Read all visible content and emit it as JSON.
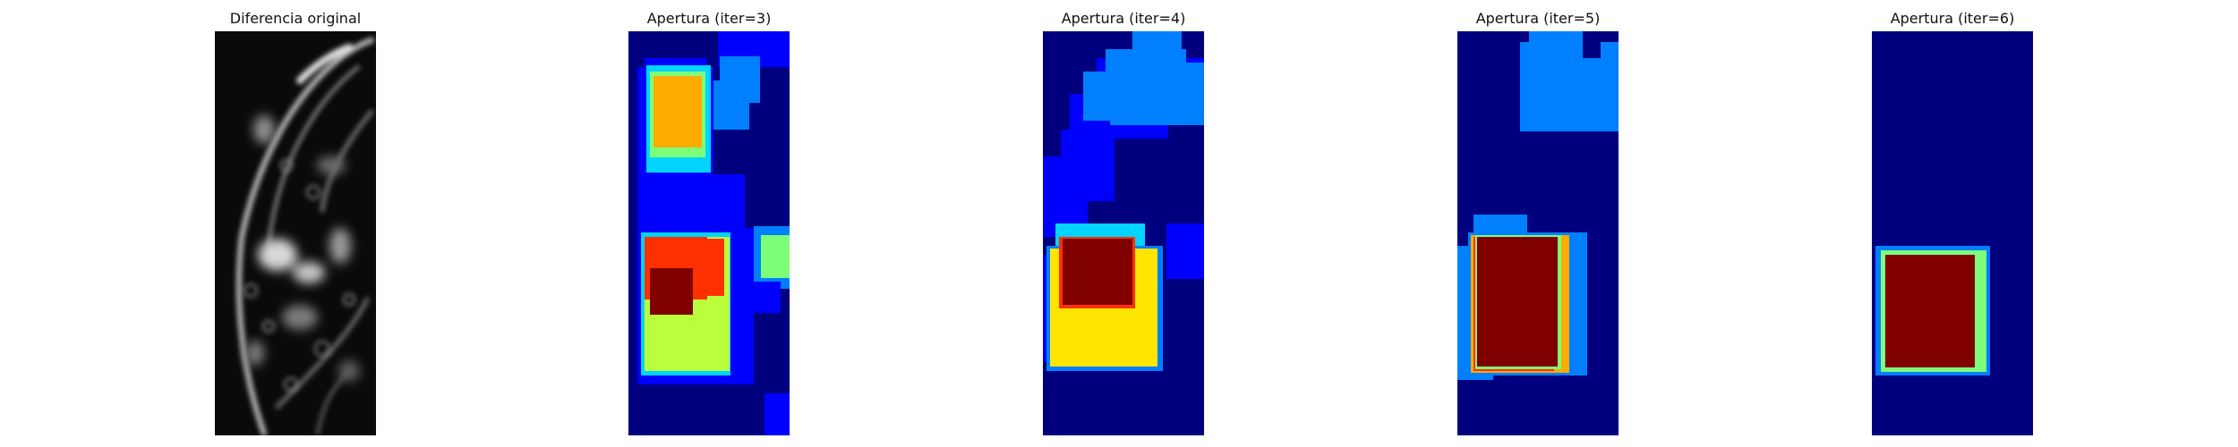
{
  "panels": [
    {
      "title": "Diferencia original",
      "colormap": "gray"
    },
    {
      "title": "Apertura (iter=3)",
      "colormap": "jet"
    },
    {
      "title": "Apertura (iter=4)",
      "colormap": "jet"
    },
    {
      "title": "Apertura (iter=5)",
      "colormap": "jet"
    },
    {
      "title": "Apertura (iter=6)",
      "colormap": "jet"
    }
  ],
  "colors": {
    "background": "#ffffff",
    "jet_dark_blue": "#00007f",
    "jet_blue": "#0000ff",
    "jet_light_blue": "#0080ff",
    "jet_cyan": "#00d4ff",
    "jet_green": "#7dff7a",
    "jet_yellow_green": "#b9ff3c",
    "jet_yellow": "#ffe600",
    "jet_orange": "#ffab00",
    "jet_red": "#ff3000",
    "jet_dark_red": "#800000"
  }
}
